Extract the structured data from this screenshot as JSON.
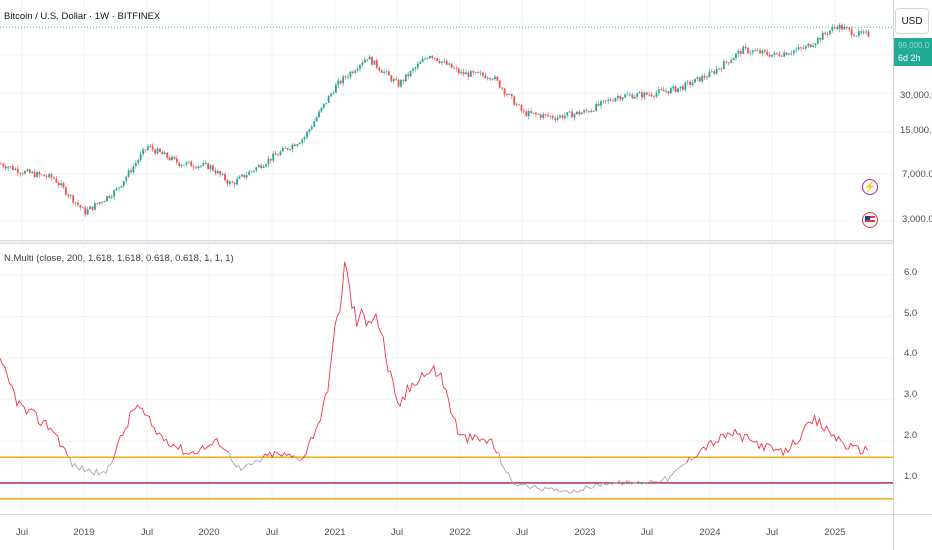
{
  "header": {
    "symbol_title": "Bitcoin / U.S. Dollar · 1W · BITFINEX",
    "currency_button": "USD",
    "price_tag_value": "99,000.0",
    "price_tag_countdown": "6d 2h"
  },
  "indicator": {
    "title": "N.Multi (close, 200, 1.618, 1.618, 0.618, 0.618, 1, 1, 1)"
  },
  "price_axis": {
    "ticks": [
      "30,000.0",
      "15,000.0",
      "7,000.0",
      "3,000.0"
    ]
  },
  "indicator_axis": {
    "ticks": [
      "6.0",
      "5.0",
      "4.0",
      "3.0",
      "2.0",
      "1.0"
    ]
  },
  "time_axis": {
    "labels": [
      "Jul",
      "2019",
      "Jul",
      "2020",
      "Jul",
      "2021",
      "Jul",
      "2022",
      "Jul",
      "2023",
      "Jul",
      "2024",
      "Jul",
      "2025"
    ]
  },
  "icons": {
    "bolt": "lightning-bolt-icon",
    "flag": "us-flag-icon"
  },
  "colors": {
    "up_candle": "#26a69a",
    "down_candle": "#ef5350",
    "indicator_high": "#f23645",
    "indicator_low": "#a3a6af",
    "upper_band": "#f5a300",
    "middle_line": "#b2164a",
    "lower_band": "#f5a300",
    "price_tag": "#22ab94"
  },
  "chart_data": [
    {
      "type": "candlestick",
      "title": "Bitcoin / U.S. Dollar · 1W · BITFINEX",
      "scale": "log",
      "x": [
        "2018-04",
        "2018-07",
        "2018-10",
        "2019-01",
        "2019-04",
        "2019-07",
        "2019-10",
        "2020-01",
        "2020-03",
        "2020-07",
        "2020-10",
        "2021-01",
        "2021-04",
        "2021-07",
        "2021-10",
        "2022-01",
        "2022-04",
        "2022-07",
        "2022-10",
        "2023-01",
        "2023-04",
        "2023-07",
        "2023-10",
        "2024-01",
        "2024-04",
        "2024-07",
        "2024-10",
        "2025-01",
        "2025-03"
      ],
      "close": [
        9000,
        7300,
        6500,
        3500,
        5200,
        11500,
        8500,
        8000,
        5800,
        9500,
        13500,
        34000,
        58000,
        35000,
        61000,
        43000,
        41000,
        21000,
        19500,
        21500,
        28500,
        29500,
        33000,
        43000,
        66000,
        60000,
        68000,
        102000,
        87000
      ],
      "y_ticks": [
        30000,
        15000,
        7000,
        3000
      ],
      "last_price_line": 99000
    },
    {
      "type": "line",
      "title": "N.Multi (close, 200, 1.618, 1.618, 0.618, 0.618, 1, 1, 1)",
      "x": [
        "2018-04",
        "2018-07",
        "2018-10",
        "2018-12",
        "2019-03",
        "2019-06",
        "2019-08",
        "2019-11",
        "2020-02",
        "2020-04",
        "2020-07",
        "2020-10",
        "2020-12",
        "2021-02",
        "2021-03",
        "2021-05",
        "2021-07",
        "2021-09",
        "2021-11",
        "2022-01",
        "2022-04",
        "2022-06",
        "2022-09",
        "2022-12",
        "2023-03",
        "2023-06",
        "2023-09",
        "2023-12",
        "2024-03",
        "2024-06",
        "2024-08",
        "2024-11",
        "2024-12",
        "2025-02",
        "2025-03"
      ],
      "values": [
        4.3,
        2.8,
        2.3,
        1.4,
        1.2,
        2.9,
        2.2,
        1.7,
        2.0,
        1.3,
        1.7,
        1.6,
        2.8,
        6.2,
        4.9,
        5.1,
        2.8,
        3.6,
        3.7,
        2.1,
        2.0,
        1.0,
        0.85,
        0.8,
        1.0,
        1.0,
        1.1,
        1.8,
        2.2,
        1.9,
        1.7,
        2.5,
        2.3,
        1.9,
        1.8
      ],
      "y_ticks": [
        6.0,
        5.0,
        4.0,
        3.0,
        2.0,
        1.0
      ],
      "ylim": [
        0.3,
        6.6
      ],
      "bands": {
        "upper": 1.618,
        "middle": 1.0,
        "lower": 0.618
      },
      "threshold_color_split": 1.618
    }
  ]
}
